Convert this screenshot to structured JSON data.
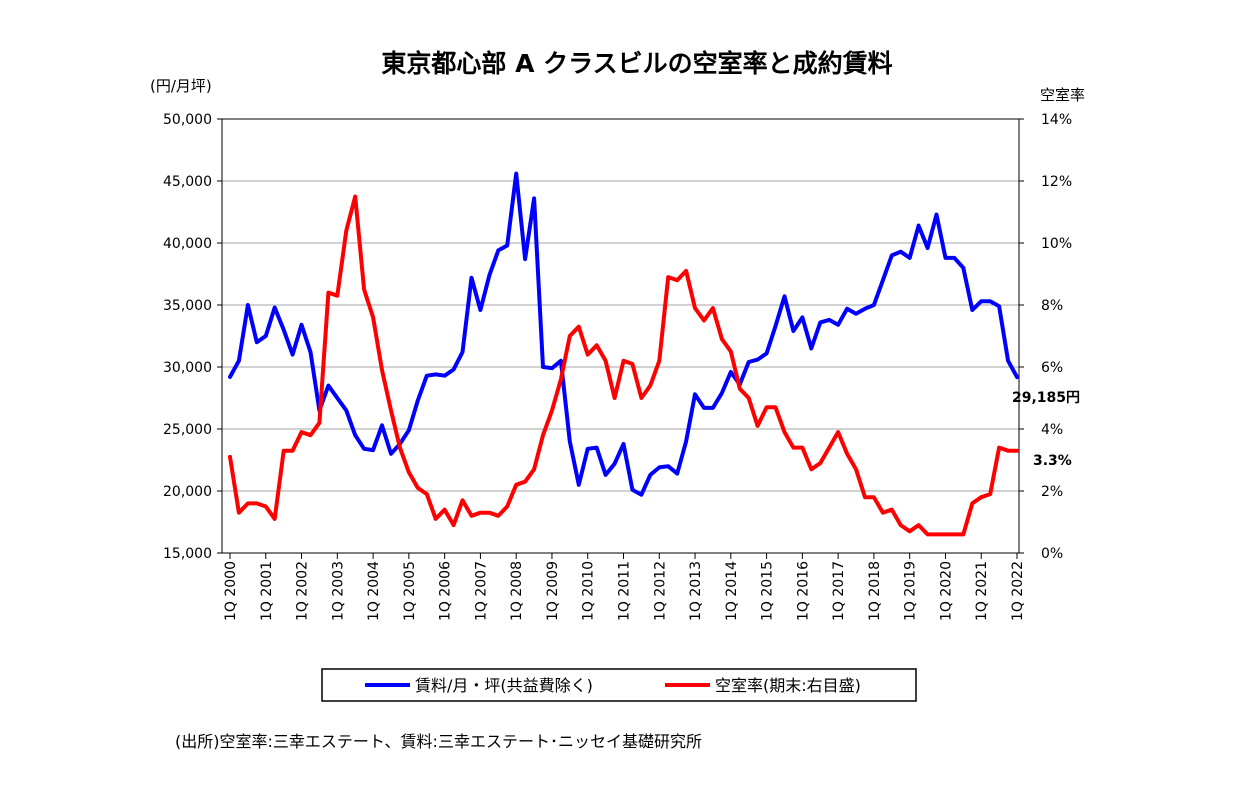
{
  "chart_data": {
    "type": "line",
    "title": "東京都心部 A クラスビルの空室率と成約賃料",
    "left_unit": "(円/月坪)",
    "right_unit": "空室率",
    "y_left": {
      "min": 15000,
      "max": 50000,
      "step": 5000,
      "ticks": [
        "15,000",
        "20,000",
        "25,000",
        "30,000",
        "35,000",
        "40,000",
        "45,000",
        "50,000"
      ]
    },
    "y_right": {
      "min": 0,
      "max": 14,
      "step": 2,
      "ticks": [
        "0%",
        "2%",
        "4%",
        "6%",
        "8%",
        "10%",
        "12%",
        "14%"
      ]
    },
    "x_labels": [
      "1Q 2000",
      "1Q 2001",
      "1Q 2002",
      "1Q 2003",
      "1Q 2004",
      "1Q 2005",
      "1Q 2006",
      "1Q 2007",
      "1Q 2008",
      "1Q 2009",
      "1Q 2010",
      "1Q 2011",
      "1Q 2012",
      "1Q 2013",
      "1Q 2014",
      "1Q 2015",
      "1Q 2016",
      "1Q 2017",
      "1Q 2018",
      "1Q 2019",
      "1Q 2020",
      "1Q 2021",
      "1Q 2022"
    ],
    "grid": true,
    "legend_position": "bottom",
    "series": [
      {
        "name": "賃料/月・坪(共益費除く)",
        "axis": "left",
        "color": "#0000ff",
        "values": [
          29200,
          30500,
          35000,
          32000,
          32500,
          34800,
          33000,
          31000,
          33400,
          31200,
          26500,
          28500,
          27500,
          26500,
          24500,
          23400,
          23300,
          25300,
          23000,
          23800,
          24900,
          27300,
          29300,
          29400,
          29300,
          29800,
          31200,
          37200,
          34600,
          37400,
          39400,
          39800,
          45600,
          38700,
          43600,
          30000,
          29900,
          30500,
          24000,
          20500,
          23400,
          23500,
          21300,
          22200,
          23800,
          20100,
          19700,
          21300,
          21900,
          22000,
          21400,
          24000,
          27800,
          26700,
          26700,
          27900,
          29600,
          28600,
          30400,
          30600,
          31100,
          33300,
          35700,
          32900,
          34000,
          31500,
          33600,
          33800,
          33400,
          34700,
          34300,
          34700,
          35000,
          37000,
          39000,
          39300,
          38800,
          41400,
          39600,
          42300,
          38800,
          38800,
          38000,
          34600,
          35300,
          35300,
          34900,
          30500,
          29185
        ]
      },
      {
        "name": "空室率(期末:右目盛)",
        "axis": "right",
        "color": "#ff0000",
        "values": [
          3.1,
          1.3,
          1.6,
          1.6,
          1.5,
          1.1,
          3.3,
          3.3,
          3.9,
          3.8,
          4.2,
          8.4,
          8.3,
          10.4,
          11.5,
          8.5,
          7.6,
          5.9,
          4.6,
          3.4,
          2.6,
          2.1,
          1.9,
          1.1,
          1.4,
          0.9,
          1.7,
          1.2,
          1.3,
          1.3,
          1.2,
          1.5,
          2.2,
          2.3,
          2.7,
          3.8,
          4.6,
          5.6,
          7.0,
          7.3,
          6.4,
          6.7,
          6.2,
          5.0,
          6.2,
          6.1,
          5.0,
          5.4,
          6.2,
          8.9,
          8.8,
          9.1,
          7.9,
          7.5,
          7.9,
          6.9,
          6.5,
          5.3,
          5.0,
          4.1,
          4.7,
          4.7,
          3.9,
          3.4,
          3.4,
          2.7,
          2.9,
          3.4,
          3.9,
          3.2,
          2.7,
          1.8,
          1.8,
          1.3,
          1.4,
          0.9,
          0.7,
          0.9,
          0.6,
          0.6,
          0.6,
          0.6,
          0.6,
          1.6,
          1.8,
          1.9,
          3.4,
          3.3,
          3.3
        ]
      }
    ],
    "end_labels": {
      "rent": "29,185円",
      "vacancy": "3.3%"
    }
  },
  "source": "(出所)空室率:三幸エステート、賃料:三幸エステート･ニッセイ基礎研究所"
}
